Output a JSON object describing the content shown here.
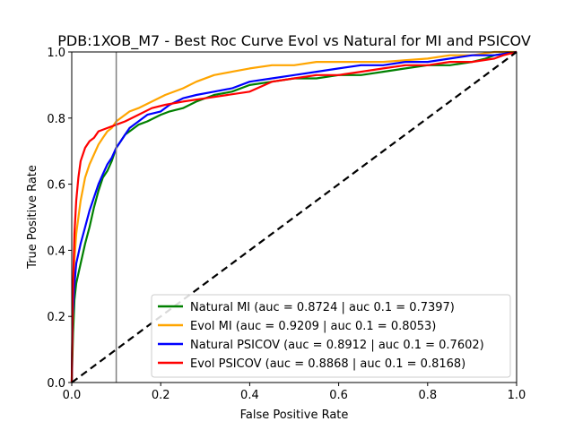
{
  "chart_data": {
    "type": "line",
    "title": "PDB:1XOB_M7 - Best Roc Curve Evol vs Natural for MI and PSICOV",
    "xlabel": "False Positive Rate",
    "ylabel": "True Positive Rate",
    "xlim": [
      0,
      1
    ],
    "ylim": [
      0,
      1
    ],
    "x_ticks": [
      "0.0",
      "0.2",
      "0.4",
      "0.6",
      "0.8",
      "1.0"
    ],
    "y_ticks": [
      "0.0",
      "0.2",
      "0.4",
      "0.6",
      "0.8",
      "1.0"
    ],
    "grid": false,
    "legend_position": "lower-right",
    "reference_vertical_line_x": 0.1,
    "diagonal_reference": true,
    "series": [
      {
        "name": "Natural MI (auc = 0.8724 | auc 0.1 = 0.7397)",
        "color": "#008000",
        "points": [
          [
            0,
            0
          ],
          [
            0.003,
            0.15
          ],
          [
            0.006,
            0.25
          ],
          [
            0.01,
            0.3
          ],
          [
            0.02,
            0.36
          ],
          [
            0.03,
            0.42
          ],
          [
            0.04,
            0.47
          ],
          [
            0.05,
            0.53
          ],
          [
            0.06,
            0.58
          ],
          [
            0.07,
            0.62
          ],
          [
            0.08,
            0.64
          ],
          [
            0.09,
            0.67
          ],
          [
            0.1,
            0.71
          ],
          [
            0.11,
            0.73
          ],
          [
            0.12,
            0.75
          ],
          [
            0.13,
            0.76
          ],
          [
            0.15,
            0.78
          ],
          [
            0.17,
            0.79
          ],
          [
            0.2,
            0.81
          ],
          [
            0.22,
            0.82
          ],
          [
            0.25,
            0.83
          ],
          [
            0.28,
            0.85
          ],
          [
            0.32,
            0.87
          ],
          [
            0.36,
            0.88
          ],
          [
            0.4,
            0.9
          ],
          [
            0.45,
            0.91
          ],
          [
            0.5,
            0.92
          ],
          [
            0.55,
            0.92
          ],
          [
            0.6,
            0.93
          ],
          [
            0.65,
            0.93
          ],
          [
            0.7,
            0.94
          ],
          [
            0.75,
            0.95
          ],
          [
            0.8,
            0.96
          ],
          [
            0.85,
            0.96
          ],
          [
            0.9,
            0.97
          ],
          [
            0.93,
            0.98
          ],
          [
            0.95,
            0.99
          ],
          [
            1.0,
            1.0
          ]
        ]
      },
      {
        "name": "Evol MI (auc = 0.9209 | auc 0.1 = 0.8053)",
        "color": "#ffa500",
        "points": [
          [
            0,
            0
          ],
          [
            0.002,
            0.2
          ],
          [
            0.005,
            0.35
          ],
          [
            0.01,
            0.45
          ],
          [
            0.02,
            0.55
          ],
          [
            0.03,
            0.62
          ],
          [
            0.04,
            0.66
          ],
          [
            0.05,
            0.69
          ],
          [
            0.06,
            0.72
          ],
          [
            0.07,
            0.74
          ],
          [
            0.08,
            0.76
          ],
          [
            0.09,
            0.77
          ],
          [
            0.1,
            0.79
          ],
          [
            0.11,
            0.8
          ],
          [
            0.12,
            0.81
          ],
          [
            0.13,
            0.82
          ],
          [
            0.15,
            0.83
          ],
          [
            0.18,
            0.85
          ],
          [
            0.21,
            0.87
          ],
          [
            0.25,
            0.89
          ],
          [
            0.28,
            0.91
          ],
          [
            0.32,
            0.93
          ],
          [
            0.36,
            0.94
          ],
          [
            0.4,
            0.95
          ],
          [
            0.45,
            0.96
          ],
          [
            0.5,
            0.96
          ],
          [
            0.55,
            0.97
          ],
          [
            0.6,
            0.97
          ],
          [
            0.7,
            0.97
          ],
          [
            0.8,
            0.98
          ],
          [
            0.85,
            0.99
          ],
          [
            0.9,
            0.99
          ],
          [
            0.95,
            1.0
          ],
          [
            1.0,
            1.0
          ]
        ]
      },
      {
        "name": "Natural PSICOV (auc = 0.8912 | auc 0.1 = 0.7602)",
        "color": "#0000ff",
        "points": [
          [
            0,
            0
          ],
          [
            0.002,
            0.2
          ],
          [
            0.005,
            0.28
          ],
          [
            0.01,
            0.36
          ],
          [
            0.02,
            0.42
          ],
          [
            0.03,
            0.47
          ],
          [
            0.04,
            0.52
          ],
          [
            0.05,
            0.56
          ],
          [
            0.06,
            0.6
          ],
          [
            0.07,
            0.63
          ],
          [
            0.08,
            0.66
          ],
          [
            0.09,
            0.68
          ],
          [
            0.1,
            0.71
          ],
          [
            0.11,
            0.73
          ],
          [
            0.12,
            0.75
          ],
          [
            0.13,
            0.77
          ],
          [
            0.15,
            0.79
          ],
          [
            0.17,
            0.81
          ],
          [
            0.2,
            0.82
          ],
          [
            0.22,
            0.84
          ],
          [
            0.25,
            0.86
          ],
          [
            0.28,
            0.87
          ],
          [
            0.32,
            0.88
          ],
          [
            0.36,
            0.89
          ],
          [
            0.4,
            0.91
          ],
          [
            0.45,
            0.92
          ],
          [
            0.5,
            0.93
          ],
          [
            0.55,
            0.94
          ],
          [
            0.6,
            0.95
          ],
          [
            0.65,
            0.96
          ],
          [
            0.7,
            0.96
          ],
          [
            0.75,
            0.97
          ],
          [
            0.8,
            0.97
          ],
          [
            0.85,
            0.98
          ],
          [
            0.9,
            0.99
          ],
          [
            0.95,
            0.99
          ],
          [
            1.0,
            1.0
          ]
        ]
      },
      {
        "name": "Evol PSICOV (auc = 0.8868 | auc 0.1 = 0.8168)",
        "color": "#ff0000",
        "points": [
          [
            0,
            0
          ],
          [
            0.002,
            0.25
          ],
          [
            0.004,
            0.35
          ],
          [
            0.006,
            0.45
          ],
          [
            0.01,
            0.55
          ],
          [
            0.015,
            0.62
          ],
          [
            0.02,
            0.67
          ],
          [
            0.03,
            0.71
          ],
          [
            0.04,
            0.73
          ],
          [
            0.05,
            0.74
          ],
          [
            0.06,
            0.76
          ],
          [
            0.08,
            0.77
          ],
          [
            0.1,
            0.78
          ],
          [
            0.12,
            0.79
          ],
          [
            0.15,
            0.81
          ],
          [
            0.18,
            0.83
          ],
          [
            0.21,
            0.84
          ],
          [
            0.25,
            0.85
          ],
          [
            0.3,
            0.86
          ],
          [
            0.35,
            0.87
          ],
          [
            0.4,
            0.88
          ],
          [
            0.45,
            0.91
          ],
          [
            0.5,
            0.92
          ],
          [
            0.55,
            0.93
          ],
          [
            0.6,
            0.93
          ],
          [
            0.65,
            0.94
          ],
          [
            0.7,
            0.95
          ],
          [
            0.75,
            0.96
          ],
          [
            0.8,
            0.96
          ],
          [
            0.85,
            0.97
          ],
          [
            0.9,
            0.97
          ],
          [
            0.95,
            0.98
          ],
          [
            0.97,
            0.99
          ],
          [
            1.0,
            1.0
          ]
        ]
      }
    ]
  }
}
